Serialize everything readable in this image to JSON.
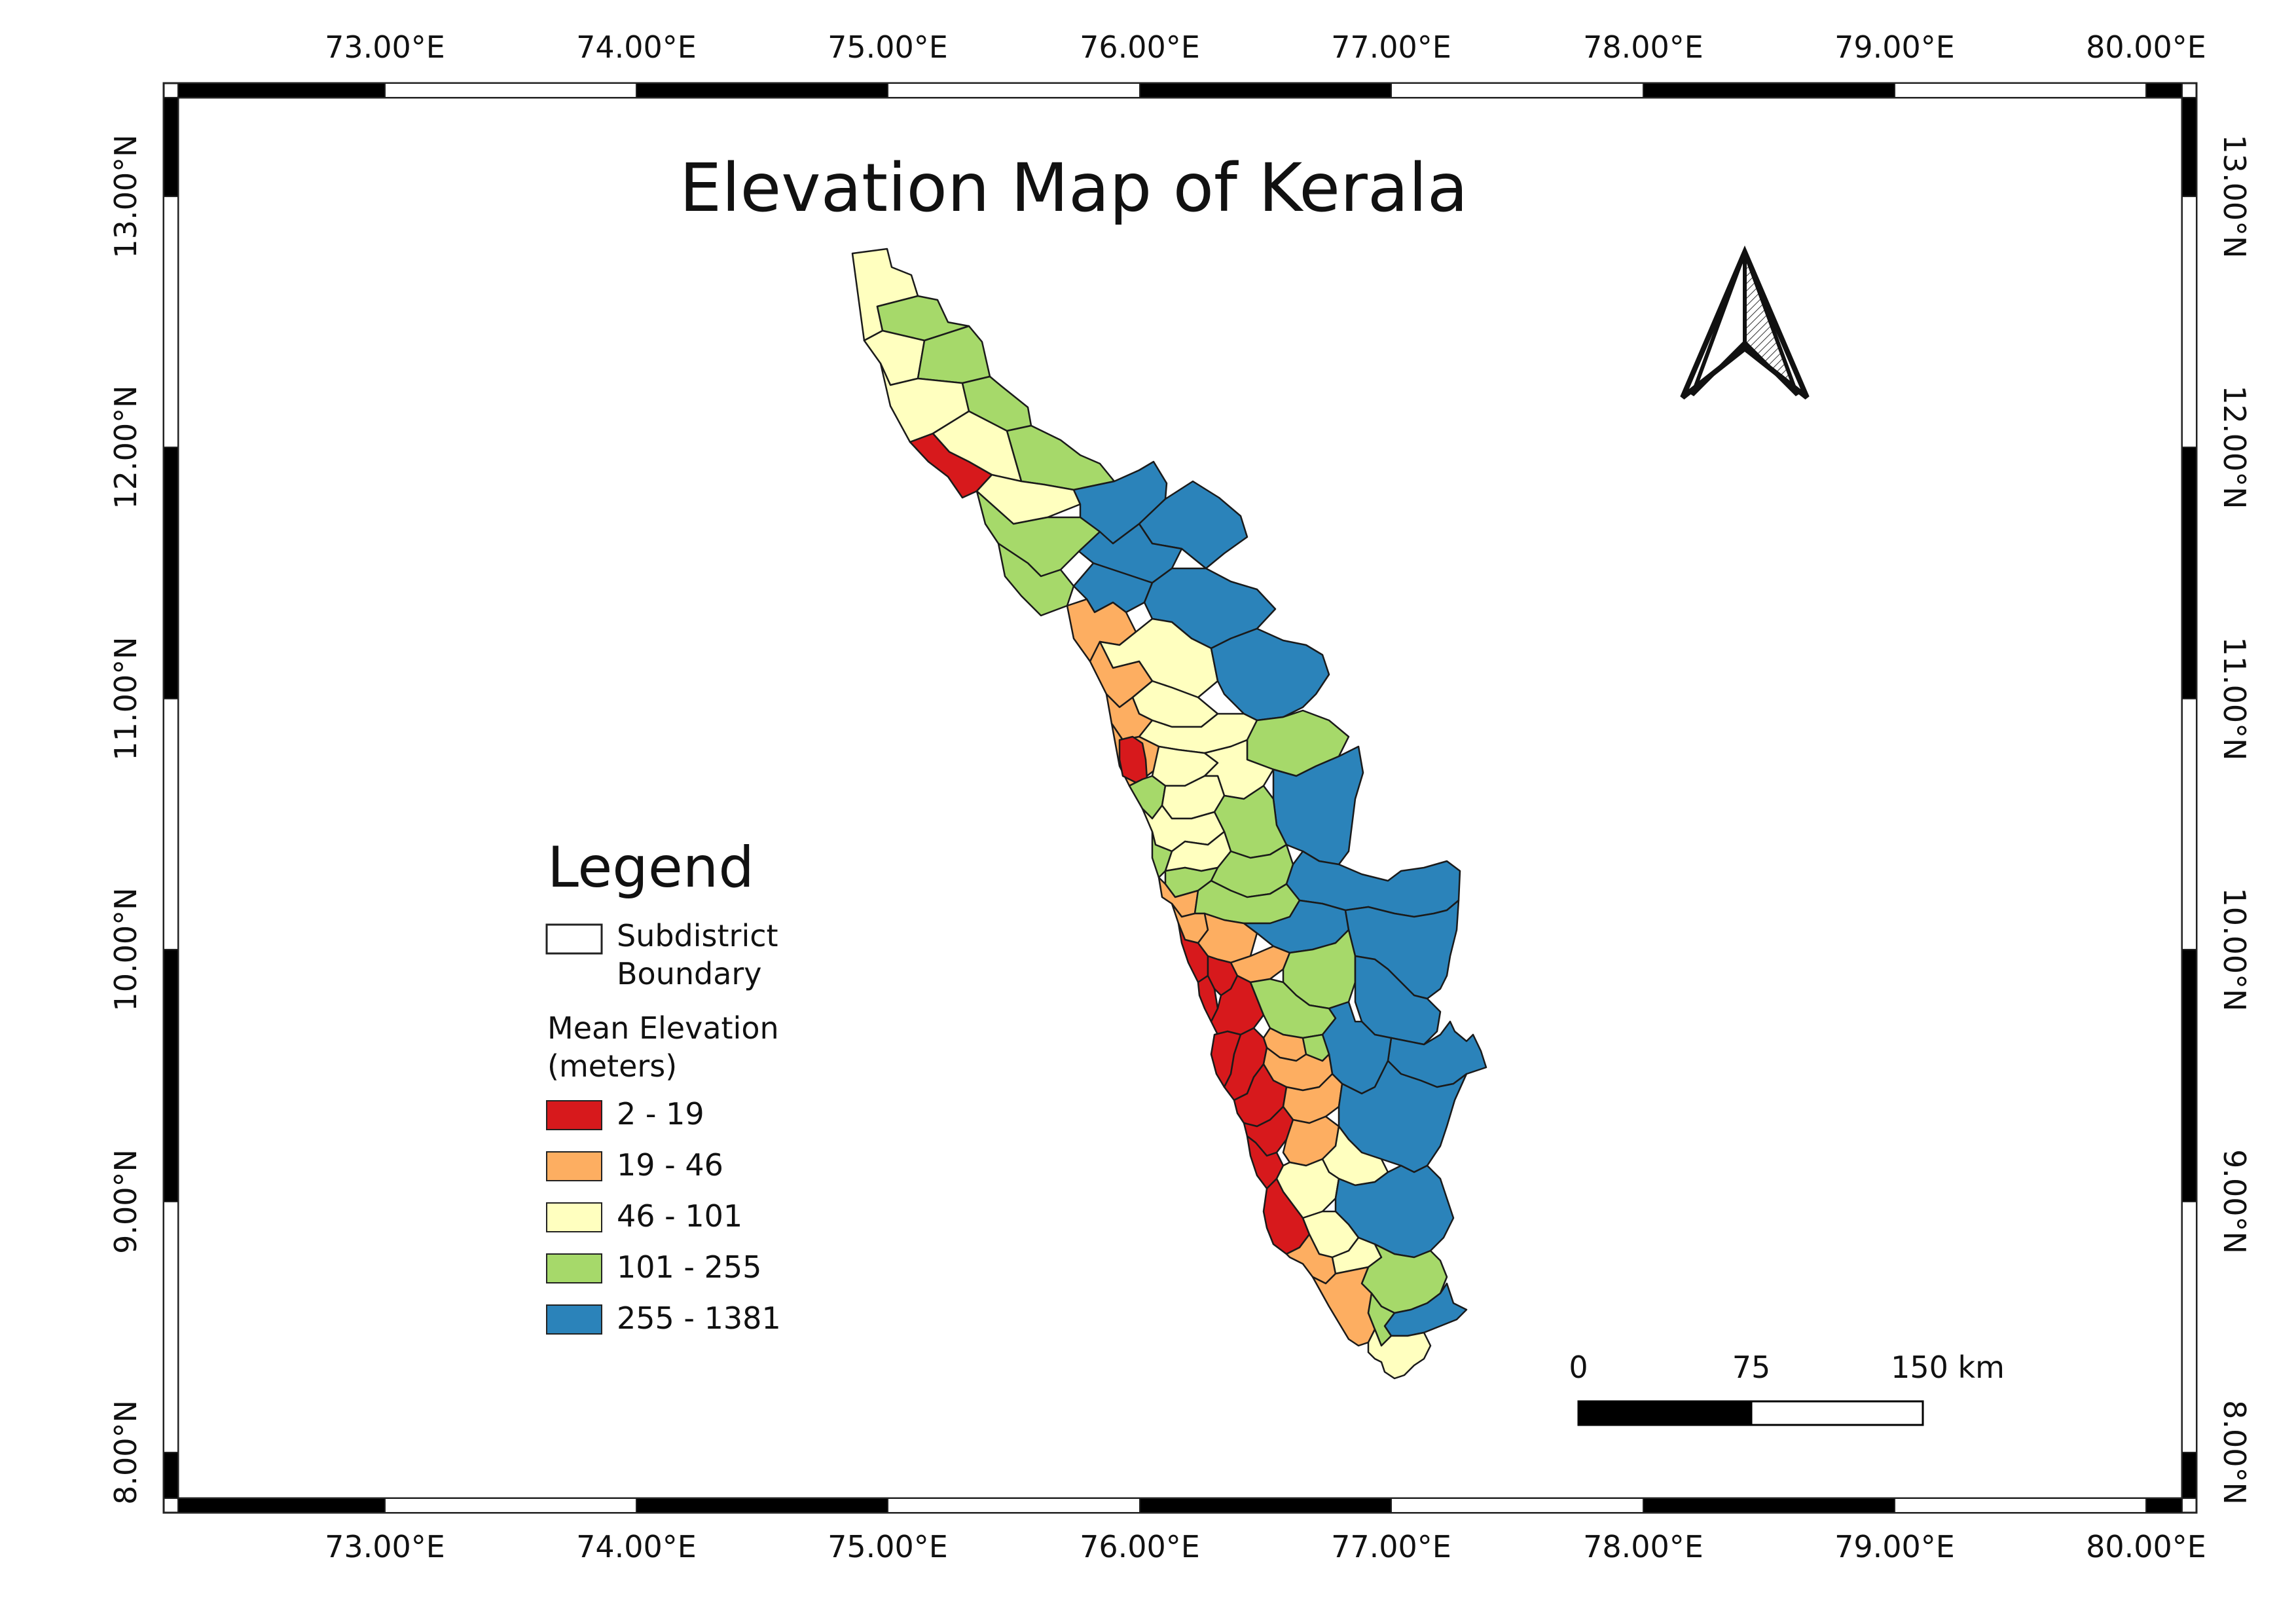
{
  "title": "Elevation Map of Kerala",
  "lon_ticks": [
    "73.00°E",
    "74.00°E",
    "75.00°E",
    "76.00°E",
    "77.00°E",
    "78.00°E",
    "79.00°E",
    "80.00°E"
  ],
  "lat_ticks": [
    "13.00°N",
    "12.00°N",
    "11.00°N",
    "10.00°N",
    "9.00°N",
    "8.00°N"
  ],
  "legend": {
    "title": "Legend",
    "boundary_label_1": "Subdistrict",
    "boundary_label_2": "Boundary",
    "elev_title_1": "Mean Elevation",
    "elev_title_2": "(meters)",
    "classes": [
      {
        "label": "2 - 19",
        "color": "#d7191c"
      },
      {
        "label": "19 - 46",
        "color": "#fdae61"
      },
      {
        "label": "46 - 101",
        "color": "#ffffbf"
      },
      {
        "label": "101 - 255",
        "color": "#a6d96a"
      },
      {
        "label": "255 - 1381",
        "color": "#2b83ba"
      }
    ]
  },
  "scalebar": {
    "labels": [
      "0",
      "75",
      "150 km"
    ]
  },
  "north_arrow": "north-arrow-icon"
}
